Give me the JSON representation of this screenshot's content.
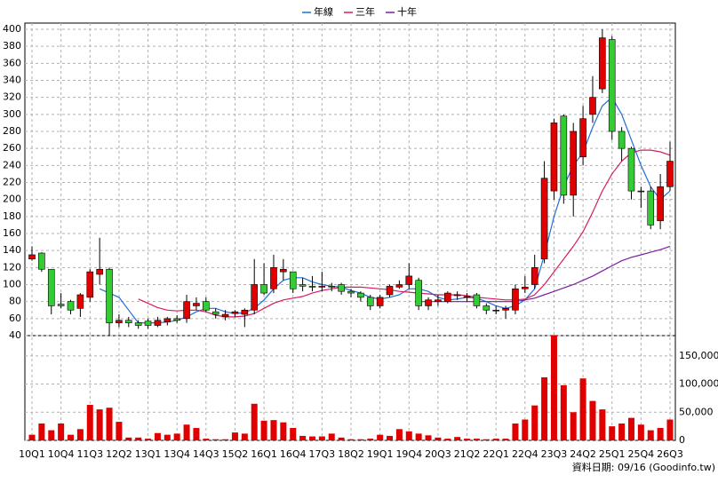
{
  "chart_data": {
    "type": "candlestick",
    "categories": [
      "10Q1",
      null,
      null,
      "10Q4",
      null,
      null,
      "11Q3",
      null,
      null,
      "12Q2",
      null,
      null,
      "13Q1",
      null,
      null,
      "13Q4",
      null,
      null,
      "14Q3",
      null,
      null,
      "15Q2",
      null,
      null,
      "16Q1",
      null,
      null,
      "16Q4",
      null,
      null,
      "17Q3",
      null,
      null,
      "18Q2",
      null,
      null,
      "19Q1",
      null,
      null,
      "19Q4",
      null,
      null,
      "20Q3",
      null,
      null,
      "21Q2",
      null,
      null,
      "22Q1",
      null,
      null,
      "22Q4",
      null,
      null,
      "23Q3",
      null,
      null,
      "24Q2",
      null,
      null,
      "25Q1",
      null,
      null,
      "25Q4",
      null,
      null,
      "26Q3"
    ],
    "open": [
      130,
      137,
      118,
      77,
      80,
      72,
      85,
      112,
      118,
      55,
      58,
      55,
      57,
      52,
      56,
      60,
      60,
      75,
      80,
      68,
      62,
      66,
      65,
      70,
      100,
      95,
      115,
      115,
      100,
      98,
      97,
      98,
      100,
      92,
      90,
      85,
      75,
      88,
      97,
      100,
      105,
      75,
      80,
      80,
      87,
      85,
      88,
      75,
      70,
      70,
      70,
      95,
      100,
      130,
      210,
      298,
      205,
      250,
      300,
      330,
      388,
      280,
      260,
      210,
      210,
      175,
      215
    ],
    "close": [
      135,
      118,
      75,
      75,
      70,
      88,
      115,
      118,
      55,
      58,
      55,
      52,
      52,
      58,
      60,
      58,
      80,
      78,
      70,
      65,
      65,
      68,
      70,
      100,
      90,
      120,
      118,
      95,
      98,
      97,
      98,
      97,
      92,
      90,
      85,
      75,
      85,
      98,
      100,
      110,
      75,
      82,
      82,
      90,
      88,
      86,
      75,
      70,
      70,
      72,
      95,
      97,
      120,
      225,
      290,
      205,
      280,
      295,
      320,
      390,
      280,
      260,
      210,
      210,
      170,
      215,
      245
    ],
    "high": [
      145,
      138,
      118,
      90,
      82,
      90,
      118,
      155,
      120,
      65,
      62,
      58,
      60,
      62,
      62,
      64,
      88,
      85,
      85,
      72,
      70,
      70,
      72,
      130,
      125,
      135,
      130,
      115,
      108,
      110,
      115,
      102,
      102,
      95,
      92,
      88,
      88,
      100,
      105,
      125,
      108,
      85,
      88,
      92,
      92,
      90,
      90,
      78,
      75,
      75,
      100,
      110,
      135,
      245,
      295,
      300,
      290,
      310,
      345,
      400,
      392,
      285,
      262,
      215,
      215,
      230,
      268
    ],
    "low": [
      128,
      115,
      65,
      72,
      65,
      62,
      80,
      100,
      40,
      50,
      50,
      48,
      48,
      50,
      52,
      55,
      55,
      70,
      68,
      60,
      58,
      62,
      50,
      65,
      88,
      90,
      105,
      90,
      92,
      92,
      92,
      92,
      88,
      85,
      80,
      70,
      72,
      85,
      95,
      95,
      70,
      70,
      75,
      78,
      82,
      80,
      72,
      65,
      65,
      60,
      65,
      90,
      95,
      125,
      200,
      195,
      180,
      240,
      290,
      325,
      270,
      245,
      200,
      190,
      165,
      165,
      210
    ],
    "up_color": "#e00000",
    "down_color": "#33cc33",
    "series": [
      {
        "name": "年線",
        "color": "#1e6fd9",
        "values": [
          null,
          null,
          null,
          null,
          null,
          null,
          null,
          95,
          90,
          85,
          70,
          55,
          55,
          55,
          56,
          58,
          62,
          68,
          72,
          72,
          68,
          66,
          67,
          72,
          82,
          95,
          105,
          108,
          108,
          103,
          100,
          98,
          97,
          93,
          90,
          85,
          83,
          85,
          88,
          95,
          95,
          92,
          85,
          82,
          83,
          85,
          84,
          80,
          75,
          72,
          75,
          82,
          95,
          135,
          180,
          215,
          240,
          255,
          285,
          310,
          320,
          300,
          270,
          240,
          215,
          200,
          210
        ]
      },
      {
        "name": "三年",
        "color": "#d81b60",
        "values": [
          null,
          null,
          null,
          null,
          null,
          null,
          null,
          null,
          null,
          null,
          null,
          83,
          78,
          73,
          70,
          69,
          70,
          70,
          68,
          64,
          62,
          62,
          63,
          66,
          72,
          78,
          82,
          84,
          86,
          90,
          93,
          95,
          97,
          97,
          97,
          96,
          95,
          94,
          92,
          91,
          90,
          89,
          88,
          88,
          88,
          87,
          85,
          84,
          83,
          82,
          82,
          83,
          88,
          100,
          115,
          130,
          145,
          162,
          185,
          210,
          230,
          245,
          255,
          258,
          258,
          256,
          252
        ]
      },
      {
        "name": "十年",
        "color": "#7b1fa2",
        "values": [
          null,
          null,
          null,
          null,
          null,
          null,
          null,
          null,
          null,
          null,
          null,
          null,
          null,
          null,
          null,
          null,
          null,
          null,
          null,
          null,
          null,
          null,
          null,
          null,
          null,
          null,
          null,
          null,
          null,
          null,
          null,
          null,
          null,
          null,
          null,
          null,
          null,
          null,
          null,
          null,
          80,
          80,
          80,
          80,
          80,
          80,
          80,
          80,
          80,
          80,
          80,
          82,
          84,
          88,
          92,
          96,
          100,
          105,
          110,
          116,
          122,
          128,
          132,
          135,
          138,
          141,
          145
        ]
      }
    ],
    "volume": {
      "color": "#e00000",
      "axis": "y2",
      "values": [
        10000,
        30000,
        18000,
        30000,
        10000,
        20000,
        63000,
        55000,
        58000,
        33000,
        5000,
        5000,
        3000,
        13000,
        10000,
        12000,
        28000,
        22000,
        3000,
        2000,
        2000,
        14000,
        12000,
        65000,
        35000,
        36000,
        32000,
        22000,
        8000,
        7000,
        7000,
        12000,
        5000,
        2000,
        2000,
        3000,
        10000,
        8000,
        20000,
        16000,
        12000,
        9000,
        5000,
        3000,
        6000,
        3000,
        3000,
        2000,
        3000,
        3000,
        30000,
        37000,
        62000,
        112000,
        187000,
        98000,
        50000,
        110000,
        70000,
        55000,
        25000,
        30000,
        40000,
        28000,
        18000,
        22000,
        37000
      ]
    },
    "ylim": [
      40,
      400
    ],
    "yticks": [
      40,
      60,
      80,
      100,
      120,
      140,
      160,
      180,
      200,
      220,
      240,
      260,
      280,
      300,
      320,
      340,
      360,
      380,
      400
    ],
    "y2lim": [
      0,
      186000
    ],
    "y2ticks": [
      0,
      {
        "value": 50000,
        "label": "50,000"
      },
      {
        "value": 100000,
        "label": "100,000"
      },
      {
        "value": 150000,
        "label": "150,000"
      }
    ],
    "grid": true,
    "legend": "top",
    "footer": "資料日期: 09/16 (Goodinfo.tw)"
  }
}
